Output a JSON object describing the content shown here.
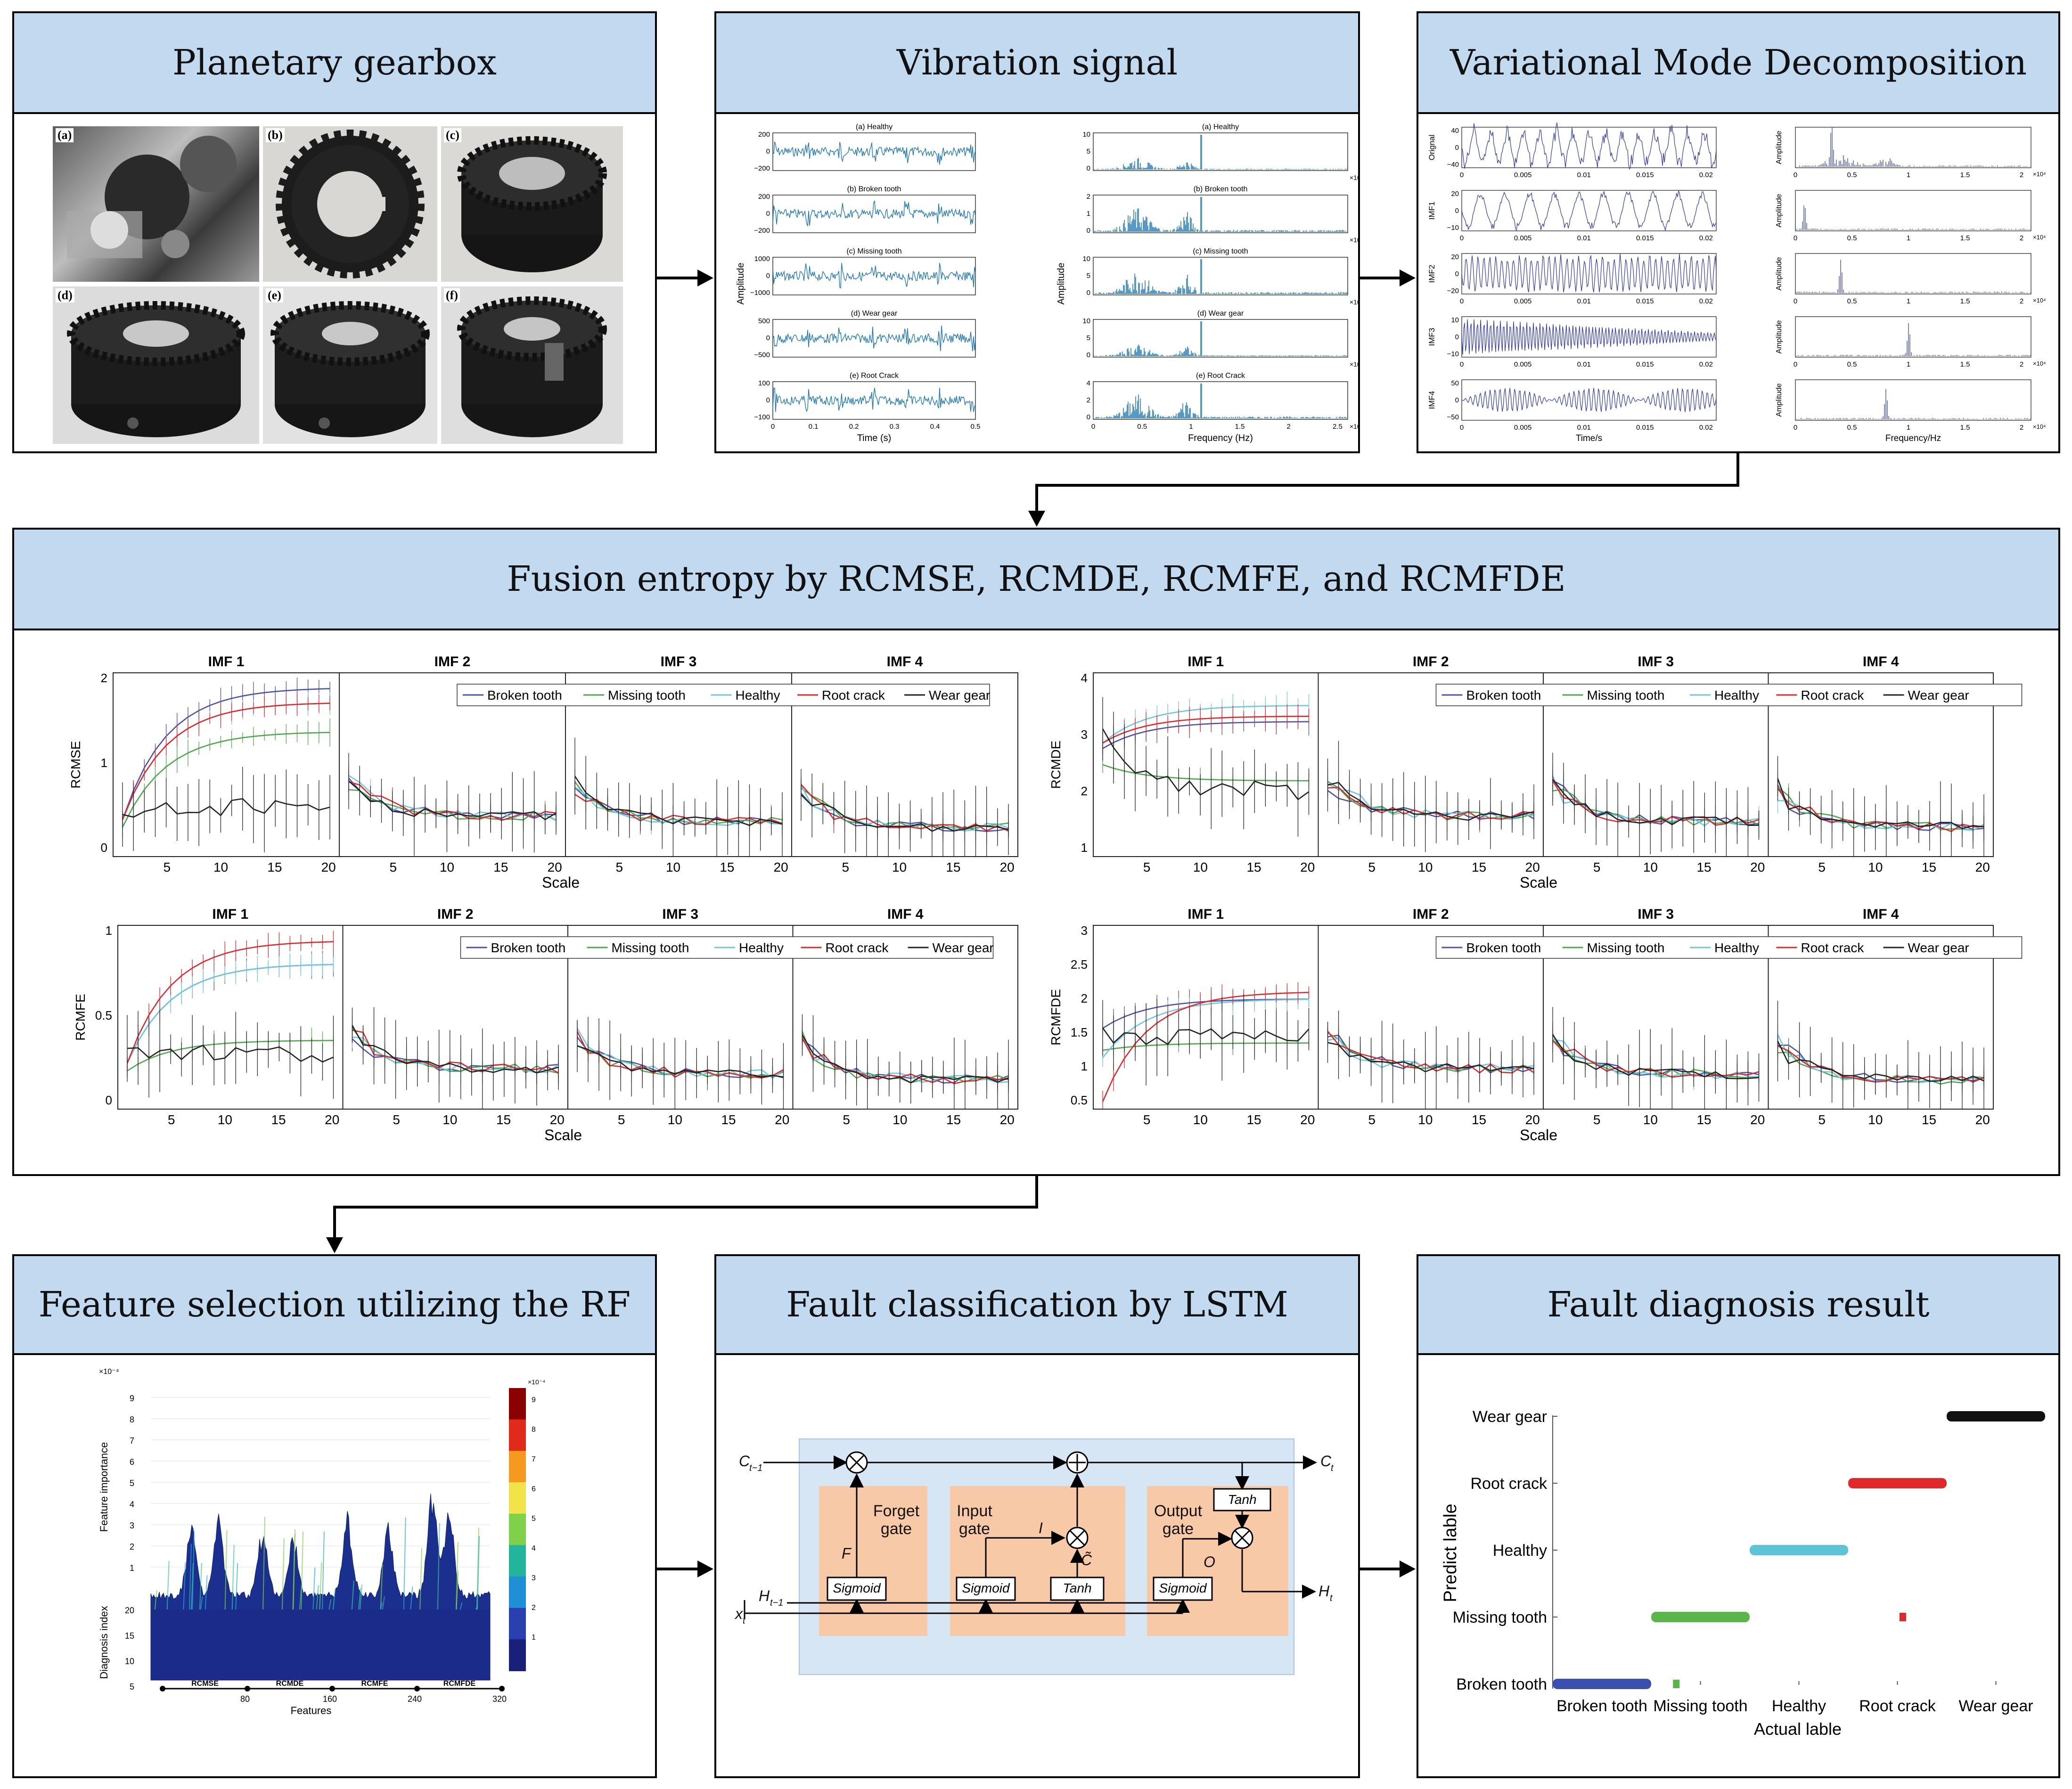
{
  "panels": {
    "planetary": {
      "title": "Planetary gearbox",
      "photo_labels": [
        "(a)",
        "(b)",
        "(c)",
        "(d)",
        "(e)",
        "(f)"
      ]
    },
    "vibration": {
      "title": "Vibration signal",
      "time_plots": [
        {
          "title": "(a) Healthy",
          "ticks": [
            "200",
            "0",
            "−200"
          ]
        },
        {
          "title": "(b) Broken tooth",
          "ticks": [
            "200",
            "0",
            "−200"
          ]
        },
        {
          "title": "(c) Missing tooth",
          "ticks": [
            "1000",
            "0",
            "−1000"
          ]
        },
        {
          "title": "(d) Wear gear",
          "ticks": [
            "500",
            "0",
            "−500"
          ]
        },
        {
          "title": "(e) Root Crack",
          "ticks": [
            "100",
            "0",
            "−100"
          ]
        }
      ],
      "freq_plots": [
        {
          "title": "(a) Healthy",
          "ticks": [
            "10",
            "5",
            "0"
          ]
        },
        {
          "title": "(b) Broken tooth",
          "ticks": [
            "2",
            "1",
            "0"
          ]
        },
        {
          "title": "(c) Missing tooth",
          "ticks": [
            "10",
            "5",
            "0"
          ]
        },
        {
          "title": "(d) Wear gear",
          "ticks": [
            "10",
            "5",
            "0"
          ]
        },
        {
          "title": "(e) Root Crack",
          "ticks": [
            "4",
            "2",
            "0"
          ]
        }
      ],
      "time_xticks": [
        "0",
        "0.1",
        "0.2",
        "0.3",
        "0.4",
        "0.5"
      ],
      "freq_xticks": [
        "0",
        "0.5",
        "1",
        "1.5",
        "2",
        "2.5"
      ],
      "time_xlabel": "Time (s)",
      "freq_xlabel": "Frequency (Hz)",
      "ylabel": "Amplitude",
      "exponent": "×10⁴"
    },
    "vmd": {
      "title": "Variational Mode Decomposition",
      "rows": [
        {
          "label": "Orignal",
          "ticks": [
            "40",
            "0",
            "−40"
          ]
        },
        {
          "label": "IMF1",
          "ticks": [
            "20",
            "0",
            "−10"
          ]
        },
        {
          "label": "IMF2",
          "ticks": [
            "20",
            "0",
            "−20"
          ]
        },
        {
          "label": "IMF3",
          "ticks": [
            "10",
            "0",
            "−10"
          ]
        },
        {
          "label": "IMF4",
          "ticks": [
            "50",
            "0",
            "−50"
          ]
        }
      ],
      "time_xticks": [
        "0",
        "0.005",
        "0.01",
        "0.015",
        "0.02"
      ],
      "freq_xticks": [
        "0",
        "0.5",
        "1",
        "1.5",
        "2"
      ],
      "time_xlabel": "Time/s",
      "freq_xlabel": "Frequency/Hz",
      "ylabel": "Amplitude",
      "exponent": "×10⁴"
    },
    "fusion": {
      "title": "Fusion entropy by RCMSE, RCMDE, RCMFE, and RCMFDE",
      "imf_titles": [
        "IMF 1",
        "IMF 2",
        "IMF 3",
        "IMF 4"
      ],
      "xticks": [
        "5",
        "10",
        "15",
        "20"
      ],
      "xlabel": "Scale",
      "legend": [
        "Broken tooth",
        "Missing tooth",
        "Healthy",
        "Root crack",
        "Wear gear"
      ],
      "colors": [
        "#4b4fae",
        "#4ea84b",
        "#6fc6e0",
        "#e0282b",
        "#222222"
      ],
      "blocks": [
        {
          "ylabel": "RCMSE",
          "yticks": [
            "2",
            "1",
            "0"
          ]
        },
        {
          "ylabel": "RCMDE",
          "yticks": [
            "4",
            "3",
            "2",
            "1"
          ]
        },
        {
          "ylabel": "RCMFE",
          "yticks": [
            "1",
            "0.5",
            "0"
          ]
        },
        {
          "ylabel": "RCMFDE",
          "yticks": [
            "3",
            "2.5",
            "2",
            "1.5",
            "1",
            "0.5"
          ]
        }
      ]
    },
    "feature": {
      "title": "Feature selection utilizing the RF",
      "zlabel": "Feature importance",
      "ylabel": "Diagnosis index",
      "xlabel": "Features",
      "zticks": [
        "9",
        "8",
        "7",
        "6",
        "5",
        "4",
        "3",
        "2",
        "1"
      ],
      "yticks": [
        "20",
        "15",
        "10",
        "5"
      ],
      "xticks": [
        "80",
        "160",
        "240",
        "320"
      ],
      "groups": [
        "RCMSE",
        "RCMDE",
        "RCMFE",
        "RCMFDE"
      ],
      "exponent": "×10⁻⁴",
      "colorbar_ticks": [
        "9",
        "8",
        "7",
        "6",
        "5",
        "4",
        "3",
        "2",
        "1"
      ]
    },
    "lstm": {
      "title": "Fault classification by LSTM",
      "c_prev": "C",
      "c_prev_sub": "t−1",
      "c_next": "C",
      "c_next_sub": "t",
      "h_prev": "H",
      "h_prev_sub": "t−1",
      "x_in": "x",
      "x_in_sub": "t",
      "h_out": "H",
      "h_out_sub": "t",
      "forget_gate": [
        "Forget",
        "gate"
      ],
      "input_gate": [
        "Input",
        "gate"
      ],
      "output_gate": [
        "Output",
        "gate"
      ],
      "f_label": "F",
      "i_label": "I",
      "c_tilde": "C̃",
      "o_label": "O",
      "sigmoid": "Sigmoid",
      "tanh": "Tanh"
    },
    "result": {
      "title": "Fault diagnosis result",
      "ylabel": "Predict lable",
      "xlabel": "Actual lable",
      "classes": [
        "Broken tooth",
        "Missing tooth",
        "Healthy",
        "Root crack",
        "Wear gear"
      ],
      "colors": [
        "#3a4fb0",
        "#5ab648",
        "#5cc4d6",
        "#e02a2a",
        "#111111"
      ],
      "bars": [
        {
          "class": 0,
          "from": 0,
          "to": 100
        },
        {
          "class": 1,
          "from": 100,
          "to": 200
        },
        {
          "class": 2,
          "from": 200,
          "to": 300
        },
        {
          "class": 3,
          "from": 300,
          "to": 400
        },
        {
          "class": 4,
          "from": 400,
          "to": 500
        }
      ],
      "outliers": [
        {
          "actual": 125,
          "pred": 0
        },
        {
          "actual": 355,
          "pred": 1
        }
      ]
    }
  }
}
